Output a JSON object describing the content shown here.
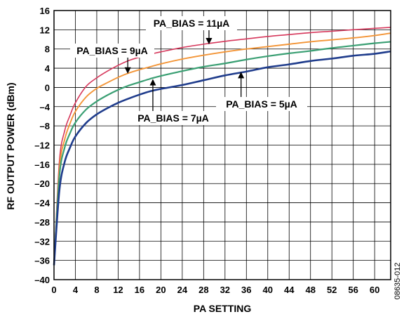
{
  "figure_id": "08635-012",
  "chart_data": {
    "type": "line",
    "xlabel": "PA SETTING",
    "ylabel": "RF OUTPUT POWER (dBm)",
    "xlim": [
      0,
      63
    ],
    "ylim": [
      -40,
      16
    ],
    "x_ticks": [
      0,
      4,
      8,
      12,
      16,
      20,
      24,
      28,
      32,
      36,
      40,
      44,
      48,
      52,
      56,
      60
    ],
    "x_tick_labels": [
      "0",
      "4",
      "8",
      "12",
      "16",
      "20",
      "24",
      "28",
      "32",
      "36",
      "40",
      "44",
      "48",
      "52",
      "56",
      "60"
    ],
    "y_ticks": [
      16,
      12,
      8,
      4,
      0,
      -4,
      -8,
      -12,
      -16,
      -20,
      -24,
      -28,
      -32,
      -36,
      -40
    ],
    "y_tick_labels": [
      "16",
      "12",
      "8",
      "4",
      "0",
      "–4",
      "–8",
      "–12",
      "–16",
      "–20",
      "–24",
      "–28",
      "–32",
      "–36",
      "–40"
    ],
    "grid": true,
    "x": [
      0,
      1,
      2,
      3,
      4,
      6,
      8,
      10,
      12,
      14,
      16,
      18,
      20,
      24,
      28,
      32,
      36,
      40,
      44,
      48,
      52,
      56,
      60,
      63
    ],
    "series": [
      {
        "name": "PA_BIAS = 11µA",
        "color": "#d6375b",
        "values": [
          -37,
          -15.5,
          -9.0,
          -5.8,
          -3.2,
          0.2,
          2.0,
          3.4,
          4.6,
          5.6,
          6.3,
          6.9,
          7.4,
          8.3,
          9.0,
          9.6,
          10.1,
          10.6,
          11.0,
          11.4,
          11.7,
          12.0,
          12.3,
          12.5
        ]
      },
      {
        "name": "PA_BIAS = 9µA",
        "color": "#f39537",
        "values": [
          -37,
          -17.0,
          -10.8,
          -7.5,
          -5.0,
          -2.0,
          -0.2,
          1.0,
          2.1,
          3.0,
          3.7,
          4.3,
          4.9,
          5.9,
          6.7,
          7.4,
          8.0,
          8.5,
          9.0,
          9.5,
          9.9,
          10.3,
          10.8,
          11.3
        ]
      },
      {
        "name": "PA_BIAS = 7µA",
        "color": "#3a9f73",
        "values": [
          -37,
          -18.5,
          -12.5,
          -9.5,
          -7.3,
          -4.6,
          -2.9,
          -1.6,
          -0.5,
          0.4,
          1.1,
          1.8,
          2.4,
          3.4,
          4.3,
          5.0,
          5.8,
          6.5,
          7.1,
          7.6,
          8.2,
          8.7,
          9.2,
          9.5
        ]
      },
      {
        "name": "PA_BIAS = 5µA",
        "color": "#1f3c8c",
        "values": [
          -37,
          -21.5,
          -15.5,
          -12.5,
          -10.2,
          -7.4,
          -5.6,
          -4.3,
          -3.2,
          -2.3,
          -1.5,
          -0.8,
          -0.3,
          0.5,
          1.5,
          2.5,
          3.3,
          4.2,
          4.8,
          5.5,
          6.0,
          6.6,
          7.0,
          7.5
        ]
      }
    ],
    "annotations": [
      {
        "text": "PA_BIAS = 11µA",
        "series": 0,
        "arrow_to": [
          29.0,
          9.1
        ]
      },
      {
        "text": "PA_BIAS = 9µA",
        "series": 1,
        "arrow_to": [
          13.8,
          3.0
        ]
      },
      {
        "text": "PA_BIAS = 7µA",
        "series": 2,
        "arrow_to": [
          18.5,
          1.6
        ]
      },
      {
        "text": "PA_BIAS = 5µA",
        "series": 3,
        "arrow_to": [
          35.0,
          3.1
        ]
      }
    ]
  }
}
